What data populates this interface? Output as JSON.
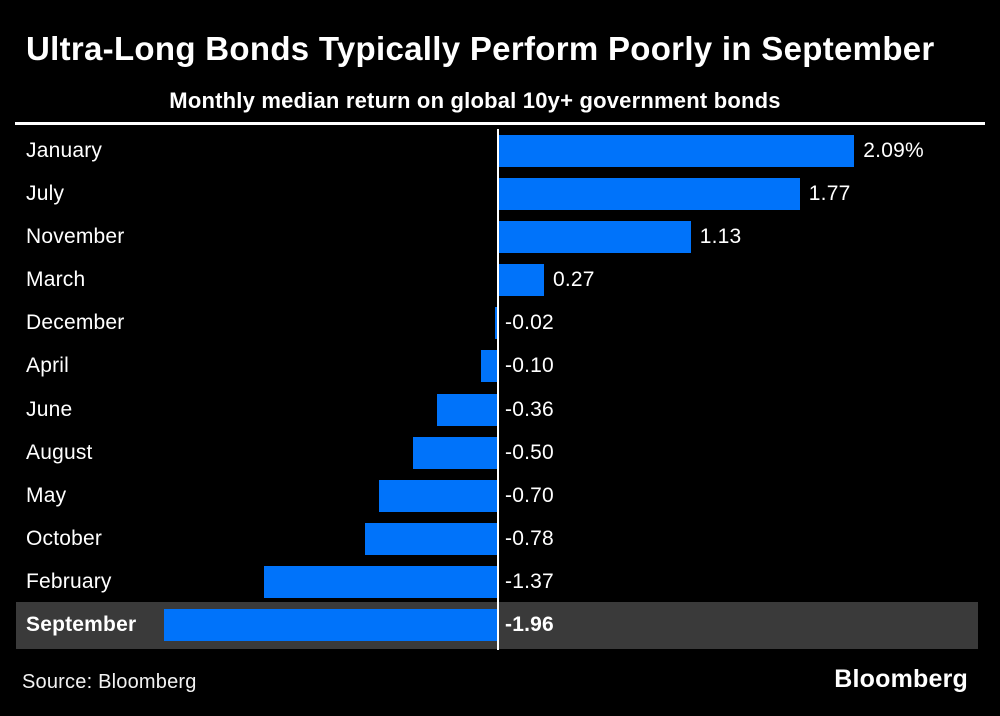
{
  "chart_data": {
    "type": "bar",
    "orientation": "horizontal",
    "title": "Ultra-Long Bonds Typically Perform Poorly in September",
    "subtitle": "Monthly median return on global 10y+ government bonds",
    "unit": "%",
    "categories": [
      "January",
      "July",
      "November",
      "March",
      "December",
      "April",
      "June",
      "August",
      "May",
      "October",
      "February",
      "September"
    ],
    "values": [
      2.09,
      1.77,
      1.13,
      0.27,
      -0.02,
      -0.1,
      -0.36,
      -0.5,
      -0.7,
      -0.78,
      -1.37,
      -1.96
    ],
    "value_labels": [
      "2.09%",
      "1.77",
      "1.13",
      "0.27",
      "-0.02",
      "-0.10",
      "-0.36",
      "-0.50",
      "-0.70",
      "-0.78",
      "-1.37",
      "-1.96"
    ],
    "highlighted_category": "September",
    "sort_order": "descending",
    "grid": false,
    "legend": false,
    "xlim": [
      -2.9,
      2.9
    ],
    "colors": {
      "bar": "#0073fa",
      "highlight_band": "#3a3a3a",
      "background": "#000000",
      "text": "#ffffff",
      "axis": "#ffffff"
    }
  },
  "footer": {
    "source": "Source: Bloomberg",
    "brand": "Bloomberg"
  }
}
